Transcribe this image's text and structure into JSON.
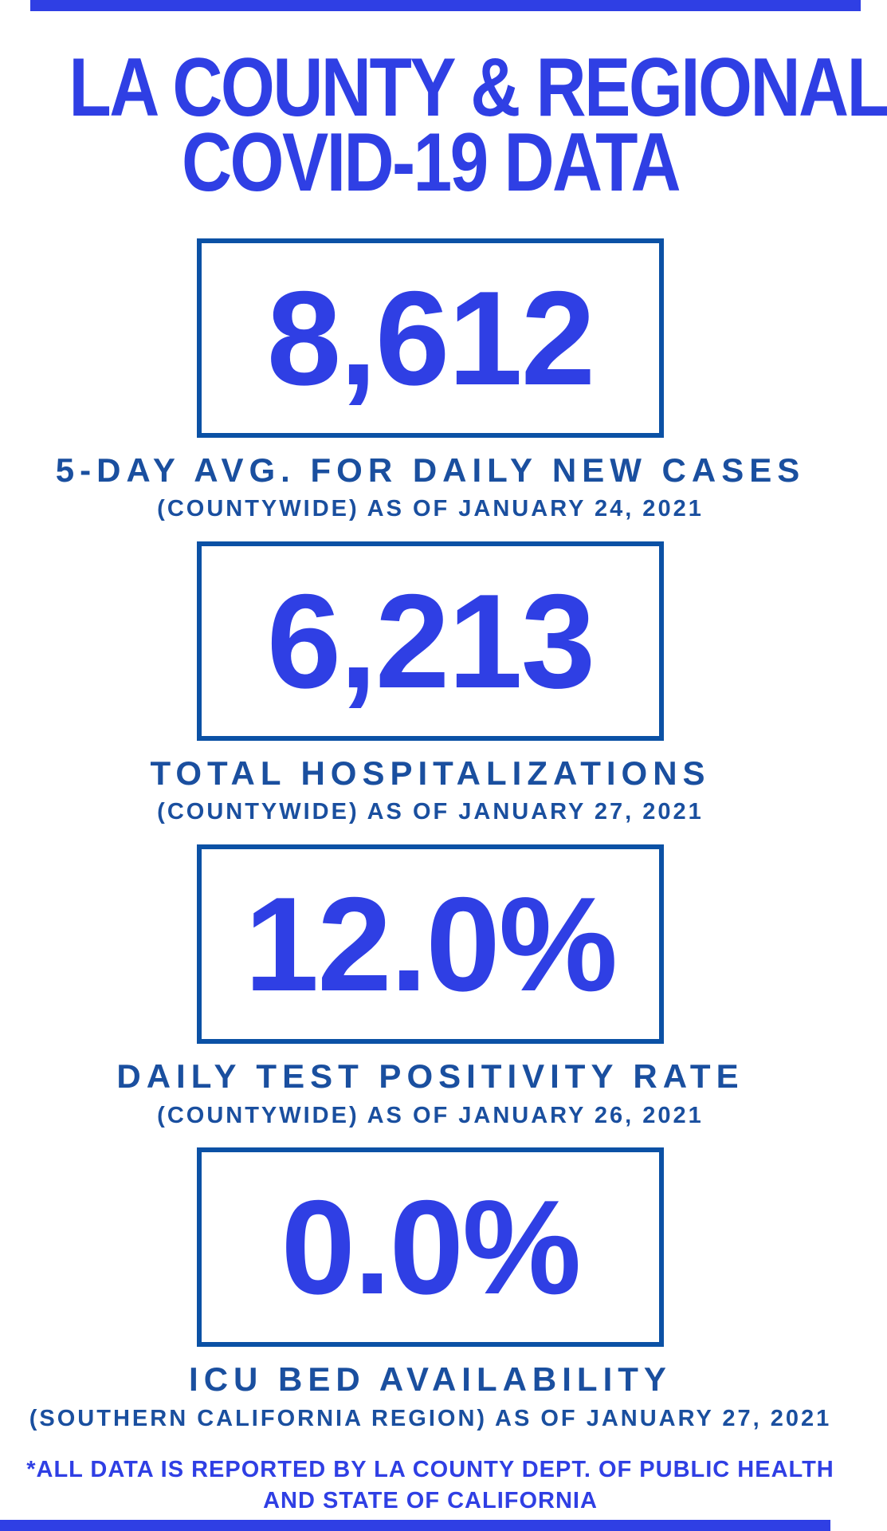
{
  "header": {
    "title_line1": "LA COUNTY & REGIONAL",
    "title_line2": "COVID-19 DATA"
  },
  "stats": [
    {
      "value": "8,612",
      "label": "5-DAY AVG. FOR DAILY NEW CASES",
      "sublabel": "(COUNTYWIDE) AS OF JANUARY 24, 2021"
    },
    {
      "value": "6,213",
      "label": "TOTAL HOSPITALIZATIONS",
      "sublabel": "(COUNTYWIDE) AS OF JANUARY 27, 2021"
    },
    {
      "value": "12.0%",
      "label": "DAILY TEST POSITIVITY RATE",
      "sublabel": "(COUNTYWIDE) AS OF JANUARY 26, 2021"
    },
    {
      "value": "0.0%",
      "label": "ICU BED AVAILABILITY",
      "sublabel": "(SOUTHERN CALIFORNIA REGION) AS OF JANUARY 27, 2021"
    }
  ],
  "footer": {
    "line1": "*ALL DATA IS REPORTED BY LA COUNTY DEPT. OF PUBLIC HEALTH",
    "line2": "AND STATE OF CALIFORNIA"
  },
  "colors": {
    "accent_blue": "#2F3FE4",
    "caption_navy": "#1A4F9F",
    "box_border_blue": "#0B51A5",
    "background": "#FFFFFF"
  },
  "chart_data": {
    "type": "table",
    "title": "LA COUNTY & REGIONAL COVID-19 DATA",
    "columns": [
      "metric",
      "value",
      "scope",
      "as_of_date"
    ],
    "rows": [
      [
        "5-DAY AVG. FOR DAILY NEW CASES",
        "8,612",
        "COUNTYWIDE",
        "JANUARY 24, 2021"
      ],
      [
        "TOTAL HOSPITALIZATIONS",
        "6,213",
        "COUNTYWIDE",
        "JANUARY 27, 2021"
      ],
      [
        "DAILY TEST POSITIVITY RATE",
        "12.0%",
        "COUNTYWIDE",
        "JANUARY 26, 2021"
      ],
      [
        "ICU BED AVAILABILITY",
        "0.0%",
        "SOUTHERN CALIFORNIA REGION",
        "JANUARY 27, 2021"
      ]
    ],
    "source_note": "*ALL DATA IS REPORTED BY LA COUNTY DEPT. OF PUBLIC HEALTH AND STATE OF CALIFORNIA"
  }
}
